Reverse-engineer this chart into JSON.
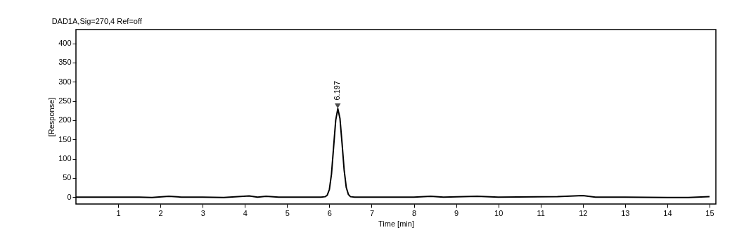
{
  "chart_data": {
    "type": "line",
    "title": "DAD1A,Sig=270,4  Ref=off",
    "xlabel": "Time [min]",
    "ylabel": "[Response]",
    "xlim": [
      0,
      15.15
    ],
    "ylim": [
      -18,
      436
    ],
    "xticks": [
      1,
      2,
      3,
      4,
      5,
      6,
      7,
      8,
      9,
      10,
      11,
      12,
      13,
      14,
      15
    ],
    "yticks": [
      0,
      50,
      100,
      150,
      200,
      250,
      300,
      350,
      400
    ],
    "grid": false,
    "marker": "none",
    "line_style": "solid",
    "annotations": [
      {
        "text": "6.197",
        "x": 6.197,
        "y": 230
      }
    ],
    "series": [
      {
        "color": "#000000",
        "x": [
          0,
          1.5,
          1.8,
          2.2,
          2.5,
          3.0,
          3.5,
          4.1,
          4.3,
          4.5,
          4.8,
          5.2,
          5.8,
          5.9,
          5.95,
          6.0,
          6.05,
          6.1,
          6.15,
          6.2,
          6.25,
          6.3,
          6.35,
          6.4,
          6.45,
          6.5,
          6.6,
          7.0,
          8.0,
          8.4,
          8.7,
          9.5,
          10.0,
          11.4,
          12.0,
          12.3,
          13.0,
          14.0,
          14.5,
          15.0
        ],
        "values": [
          0,
          0,
          -1,
          2,
          0,
          0,
          -1,
          3,
          0,
          2,
          0,
          0,
          0,
          1,
          5,
          20,
          60,
          130,
          200,
          230,
          205,
          140,
          70,
          25,
          7,
          1,
          0,
          0,
          0,
          2,
          0,
          2,
          0,
          1,
          4,
          0,
          0,
          -1,
          -1,
          1
        ]
      }
    ]
  }
}
